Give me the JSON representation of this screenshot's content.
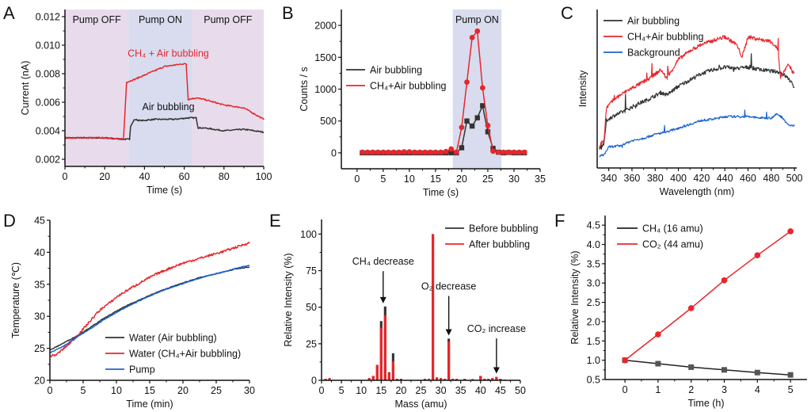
{
  "chart_data": [
    {
      "panel": "A",
      "type": "line",
      "xlabel": "Time (s)",
      "ylabel": "Current (nA)",
      "xlim": [
        0,
        100
      ],
      "ylim": [
        0.0015,
        0.0125
      ],
      "xticks": [
        0,
        20,
        40,
        60,
        80,
        100
      ],
      "yticks": [
        0.002,
        0.004,
        0.006,
        0.008,
        0.01,
        0.012
      ],
      "ytick_labels": [
        "0.002",
        "0.004",
        "0.006",
        "0.008",
        "0.010",
        "0.012"
      ],
      "regions": [
        {
          "label": "Pump OFF",
          "x0": 0,
          "x1": 32,
          "color": "#e8dcec"
        },
        {
          "label": "Pump ON",
          "x0": 32,
          "x1": 64,
          "color": "#d8dcee"
        },
        {
          "label": "Pump OFF",
          "x0": 64,
          "x1": 100,
          "color": "#e8dcec"
        }
      ],
      "series": [
        {
          "name": "Air bubbling",
          "color": "#333333",
          "x": [
            0,
            10,
            20,
            30,
            32.5,
            33,
            35,
            38,
            45,
            55,
            62,
            66,
            67,
            70,
            80,
            90,
            95,
            100
          ],
          "y": [
            0.0035,
            0.0035,
            0.0035,
            0.0034,
            0.0034,
            0.0043,
            0.0048,
            0.0047,
            0.0048,
            0.0048,
            0.0049,
            0.0049,
            0.0042,
            0.0042,
            0.004,
            0.0041,
            0.004,
            0.0039
          ]
        },
        {
          "name": "CH4 + Air bubbling",
          "color": "#e8262b",
          "x": [
            0,
            10,
            20,
            29,
            29.5,
            31,
            35,
            40,
            45,
            50,
            55,
            60,
            61,
            62,
            66,
            70,
            80,
            90,
            95,
            100
          ],
          "y": [
            0.0035,
            0.0035,
            0.0035,
            0.0034,
            0.0035,
            0.0074,
            0.0076,
            0.0079,
            0.0082,
            0.0085,
            0.0086,
            0.0087,
            0.0087,
            0.0062,
            0.0063,
            0.0062,
            0.0058,
            0.0056,
            0.0052,
            0.0048
          ]
        }
      ],
      "annotations": [
        {
          "text": "CH₄ + Air bubbling",
          "x": 52,
          "y": 0.0092,
          "color": "#e8262b"
        },
        {
          "text": "Air bubbling",
          "x": 52,
          "y": 0.00545,
          "color": "#111111"
        }
      ]
    },
    {
      "panel": "B",
      "type": "line",
      "xlabel": "Time (s)",
      "ylabel": "Counts / s",
      "xlim": [
        -3,
        35
      ],
      "ylim": [
        -250,
        2250
      ],
      "xticks": [
        0,
        5,
        10,
        15,
        20,
        25,
        30,
        35
      ],
      "yticks": [
        0,
        500,
        1000,
        1500,
        2000
      ],
      "regions": [
        {
          "label": "Pump ON",
          "x0": 18.3,
          "x1": 27.6,
          "color": "#d8dcee"
        }
      ],
      "legend": "middle-left",
      "series": [
        {
          "name": "Air bubbling",
          "color": "#333333",
          "marker": "square",
          "x": [
            1,
            2,
            3,
            4,
            5,
            6,
            7,
            8,
            9,
            10,
            11,
            12,
            13,
            14,
            15,
            16,
            17,
            18,
            19,
            20,
            21,
            22,
            23,
            24,
            25,
            26,
            27,
            28,
            29,
            30,
            31,
            32
          ],
          "y": [
            0,
            0,
            0,
            0,
            0,
            0,
            0,
            0,
            0,
            0,
            0,
            0,
            0,
            0,
            0,
            0,
            0,
            0,
            0,
            80,
            500,
            420,
            550,
            740,
            330,
            70,
            10,
            0,
            5,
            0,
            0,
            0
          ]
        },
        {
          "name": "CH4+Air bubbling",
          "color": "#e8262b",
          "marker": "circle",
          "x": [
            1,
            2,
            3,
            4,
            5,
            6,
            7,
            8,
            9,
            10,
            11,
            12,
            13,
            14,
            15,
            16,
            17,
            18,
            19,
            20,
            21,
            22,
            23,
            24,
            25,
            26,
            27,
            28,
            29,
            30,
            31,
            32
          ],
          "y": [
            10,
            10,
            10,
            10,
            10,
            10,
            10,
            10,
            15,
            15,
            10,
            10,
            10,
            10,
            10,
            10,
            20,
            60,
            10,
            400,
            1110,
            1810,
            1910,
            1020,
            430,
            25,
            10,
            10,
            10,
            10,
            10,
            10
          ]
        }
      ]
    },
    {
      "panel": "C",
      "type": "line",
      "xlabel": "Wavelength (nm)",
      "ylabel": "Intensity",
      "xlim": [
        330,
        502
      ],
      "xticks": [
        340,
        360,
        380,
        400,
        420,
        440,
        460,
        480,
        500
      ],
      "yticks": [],
      "legend": "top-left",
      "series": [
        {
          "name": "Air bubbling",
          "color": "#333333",
          "x": [
            332,
            336,
            338,
            345,
            355,
            365,
            375,
            385,
            390,
            400,
            410,
            420,
            430,
            440,
            450,
            460,
            470,
            480,
            488,
            495,
            500
          ],
          "y": [
            0.08,
            0.12,
            0.3,
            0.34,
            0.38,
            0.43,
            0.47,
            0.52,
            0.5,
            0.57,
            0.62,
            0.67,
            0.7,
            0.72,
            0.71,
            0.72,
            0.7,
            0.69,
            0.68,
            0.63,
            0.56
          ]
        },
        {
          "name": "CH4+Air bubbling",
          "color": "#e8262b",
          "x": [
            332,
            336,
            338,
            345,
            355,
            365,
            375,
            385,
            390,
            400,
            410,
            420,
            430,
            440,
            450,
            455,
            460,
            470,
            480,
            486,
            488,
            495,
            500
          ],
          "y": [
            0.1,
            0.15,
            0.4,
            0.47,
            0.53,
            0.58,
            0.63,
            0.7,
            0.63,
            0.78,
            0.85,
            0.9,
            0.93,
            0.96,
            0.9,
            0.8,
            0.96,
            0.94,
            0.92,
            0.86,
            0.64,
            0.74,
            0.66
          ]
        },
        {
          "name": "Background",
          "color": "#1b63d3",
          "x": [
            332,
            336,
            340,
            350,
            360,
            370,
            380,
            390,
            400,
            410,
            420,
            430,
            440,
            450,
            460,
            470,
            480,
            485,
            490,
            495,
            500
          ],
          "y": [
            0.02,
            0.03,
            0.09,
            0.1,
            0.14,
            0.16,
            0.19,
            0.21,
            0.24,
            0.27,
            0.3,
            0.31,
            0.33,
            0.33,
            0.33,
            0.32,
            0.32,
            0.35,
            0.32,
            0.26,
            0.26
          ]
        }
      ]
    },
    {
      "panel": "D",
      "type": "line",
      "xlabel": "Time (min)",
      "ylabel": "Temperature (℃)",
      "xlim": [
        0,
        30
      ],
      "ylim": [
        20,
        45
      ],
      "xticks": [
        0,
        5,
        10,
        15,
        20,
        25,
        30
      ],
      "yticks": [
        20,
        25,
        30,
        35,
        40,
        45
      ],
      "legend": "bottom-center",
      "series": [
        {
          "name": "Water (Air bubbling)",
          "color": "#333333",
          "x": [
            0,
            2,
            4,
            6,
            8,
            10,
            12,
            14,
            16,
            18,
            20,
            22,
            24,
            26,
            28,
            30
          ],
          "y": [
            24.7,
            25.8,
            26.9,
            28.2,
            29.6,
            30.8,
            31.9,
            32.8,
            33.7,
            34.5,
            35.2,
            35.9,
            36.4,
            36.9,
            37.4,
            37.7
          ]
        },
        {
          "name": "Water (CH4+Air bubbling)",
          "color": "#e8262b",
          "x": [
            0,
            1,
            2,
            3,
            4,
            5,
            6,
            7,
            8,
            9,
            10,
            12,
            14,
            16,
            18,
            20,
            22,
            24,
            26,
            28,
            30
          ],
          "y": [
            23.8,
            24.0,
            24.9,
            25.8,
            26.8,
            28.0,
            29.2,
            30.4,
            31.4,
            32.1,
            33.0,
            34.3,
            35.5,
            36.6,
            37.5,
            38.3,
            38.9,
            39.5,
            40.1,
            40.8,
            41.5
          ]
        },
        {
          "name": "Pump",
          "color": "#1b63d3",
          "x": [
            0,
            2,
            4,
            6,
            8,
            10,
            12,
            14,
            16,
            18,
            20,
            22,
            24,
            26,
            28,
            30
          ],
          "y": [
            24.3,
            25.3,
            26.7,
            28.0,
            29.4,
            30.6,
            31.7,
            32.7,
            33.6,
            34.4,
            35.1,
            35.8,
            36.4,
            36.9,
            37.5,
            38.0
          ]
        }
      ]
    },
    {
      "panel": "E",
      "type": "bar",
      "xlabel": "Mass (amu)",
      "ylabel": "Relative Intensity (%)",
      "xlim": [
        0,
        50
      ],
      "ylim": [
        0,
        110
      ],
      "xticks": [
        0,
        5,
        10,
        15,
        20,
        25,
        30,
        35,
        40,
        45,
        50
      ],
      "yticks": [
        0,
        25,
        50,
        75,
        100
      ],
      "legend": "top-right",
      "x": [
        1,
        2,
        12,
        13,
        14,
        15,
        16,
        17,
        18,
        19,
        20,
        26,
        27,
        28,
        29,
        30,
        31,
        32,
        33,
        34,
        36,
        38,
        40,
        41,
        42,
        43,
        44,
        45,
        46,
        48
      ],
      "series": [
        {
          "name": "Before bubbling",
          "color": "#333333",
          "values": [
            1,
            1.5,
            1.5,
            3,
            10.5,
            40.5,
            50.5,
            5.5,
            18.5,
            1,
            1,
            1,
            1,
            100,
            2,
            1.5,
            1,
            28.5,
            1,
            1,
            1,
            0.8,
            3,
            1,
            1,
            1.5,
            1,
            0.8,
            0.5,
            0.3
          ]
        },
        {
          "name": "After bubbling",
          "color": "#e8262b",
          "values": [
            1,
            1.5,
            1.5,
            3,
            10.5,
            36,
            44.5,
            5,
            13,
            1,
            1,
            1,
            1,
            100,
            2,
            1.5,
            0.8,
            26.5,
            1,
            1,
            1,
            0.3,
            3,
            1,
            1,
            1.5,
            2.3,
            1,
            0.3,
            0.3
          ]
        }
      ],
      "annotations": [
        {
          "text": "CH₄ decrease",
          "arrow_x": 15.5,
          "arrow_y": 51,
          "label_y": 79
        },
        {
          "text": "O₂ decrease",
          "arrow_x": 32,
          "arrow_y": 29,
          "label_y": 62
        },
        {
          "text": "CO₂ increase",
          "arrow_x": 44,
          "arrow_y": 3,
          "label_y": 33
        }
      ]
    },
    {
      "panel": "F",
      "type": "line",
      "xlabel": "Time (h)",
      "ylabel": "Relative Intensity (%)",
      "xlim": [
        -0.6,
        5.5
      ],
      "ylim": [
        0.5,
        4.75
      ],
      "xticks": [
        0,
        1,
        2,
        3,
        4,
        5
      ],
      "yticks": [
        0.5,
        1.0,
        1.5,
        2.0,
        2.5,
        3.0,
        3.5,
        4.0,
        4.5
      ],
      "ytick_labels": [
        "0.5",
        "1.0",
        "1.5",
        "2.0",
        "2.5",
        "3.0",
        "3.5",
        "4.0",
        "4.5"
      ],
      "legend": "top-left",
      "series": [
        {
          "name": "CH₄ (16 amu)",
          "color": "#222222",
          "marker": "square",
          "x": [
            0,
            1,
            2,
            3,
            4,
            5
          ],
          "y": [
            1.0,
            0.91,
            0.82,
            0.75,
            0.68,
            0.62
          ]
        },
        {
          "name": "CO₂ (44 amu)",
          "color": "#e8262b",
          "marker": "circle",
          "x": [
            0,
            1,
            2,
            3,
            4,
            5
          ],
          "y": [
            1.0,
            1.67,
            2.35,
            3.07,
            3.72,
            4.34
          ]
        }
      ]
    }
  ],
  "legends": {
    "B": [
      "Air bubbling",
      "CH₄+Air bubbling"
    ],
    "C": [
      "Air bubbling",
      "CH₄+Air bubbling",
      "Background"
    ],
    "D": [
      "Water (Air bubbling)",
      "Water (CH₄+Air bubbling)",
      "Pump"
    ],
    "E": [
      "Before bubbling",
      "After bubbling"
    ],
    "F": [
      "CH₄ (16 amu)",
      "CO₂ (44 amu)"
    ]
  }
}
